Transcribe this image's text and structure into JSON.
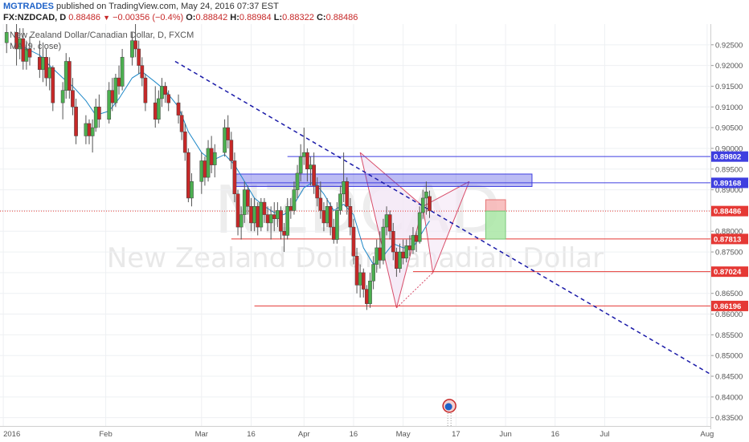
{
  "header": {
    "publisher": "MGTRADES",
    "published_text": "published on TradingView.com, May 24, 2016 07:37 EST",
    "symbol": "FX:NZDCAD, D",
    "last": "0.88486",
    "change": "−0.00356 (−0.4%)",
    "open_label": "O:",
    "open": "0.88842",
    "high_label": "H:",
    "high": "0.88984",
    "low_label": "L:",
    "low": "0.88322",
    "close_label": "C:",
    "close": "0.88486"
  },
  "overlay": {
    "title": "New Zealand Dollar/Canadian Dollar, D, FXCM",
    "ma_label": "MA (9, close)"
  },
  "watermark": {
    "symbol": "NZDCAD",
    "name": "New Zealand Dollar/Canadian Dollar"
  },
  "colors": {
    "up": "#4caf50",
    "down": "#c62828",
    "ma": "#1e88c8",
    "level_blue": "#3f3fe0",
    "level_red": "#e53935",
    "trend": "#1a1aa8"
  },
  "chart_data": {
    "type": "candlestick",
    "title": "New Zealand Dollar/Canadian Dollar, D, FXCM",
    "ylim": [
      0.833,
      0.93
    ],
    "y_ticks": [
      "0.92500",
      "0.92000",
      "0.91500",
      "0.91000",
      "0.90500",
      "0.90000",
      "0.89500",
      "0.89000",
      "0.88500",
      "0.88000",
      "0.87500",
      "0.87000",
      "0.86500",
      "0.86000",
      "0.85500",
      "0.85000",
      "0.84500",
      "0.84000",
      "0.83500"
    ],
    "x_ticks": [
      {
        "label": "2016",
        "day": 0
      },
      {
        "label": "Feb",
        "day": 31
      },
      {
        "label": "Mar",
        "day": 60
      },
      {
        "label": "16",
        "day": 75
      },
      {
        "label": "Apr",
        "day": 91
      },
      {
        "label": "16",
        "day": 106
      },
      {
        "label": "May",
        "day": 121
      },
      {
        "label": "17",
        "day": 137
      },
      {
        "label": "Jun",
        "day": 152
      },
      {
        "label": "16",
        "day": 167
      },
      {
        "label": "Jul",
        "day": 182
      },
      {
        "label": "Aug",
        "day": 213
      }
    ],
    "x_range_days": [
      -1,
      214
    ],
    "candles": [
      {
        "d": 1,
        "o": 0.9255,
        "h": 0.93,
        "l": 0.923,
        "c": 0.928
      },
      {
        "d": 4,
        "o": 0.928,
        "h": 0.93,
        "l": 0.92,
        "c": 0.924
      },
      {
        "d": 5,
        "o": 0.924,
        "h": 0.929,
        "l": 0.9215,
        "c": 0.9265
      },
      {
        "d": 6,
        "o": 0.9265,
        "h": 0.929,
        "l": 0.919,
        "c": 0.921
      },
      {
        "d": 7,
        "o": 0.921,
        "h": 0.926,
        "l": 0.919,
        "c": 0.924
      },
      {
        "d": 8,
        "o": 0.924,
        "h": 0.927,
        "l": 0.92,
        "c": 0.922
      },
      {
        "d": 11,
        "o": 0.922,
        "h": 0.926,
        "l": 0.917,
        "c": 0.919
      },
      {
        "d": 12,
        "o": 0.919,
        "h": 0.924,
        "l": 0.916,
        "c": 0.922
      },
      {
        "d": 13,
        "o": 0.922,
        "h": 0.924,
        "l": 0.915,
        "c": 0.917
      },
      {
        "d": 14,
        "o": 0.917,
        "h": 0.922,
        "l": 0.914,
        "c": 0.9195
      },
      {
        "d": 15,
        "o": 0.9195,
        "h": 0.92,
        "l": 0.909,
        "c": 0.911
      },
      {
        "d": 18,
        "o": 0.911,
        "h": 0.916,
        "l": 0.907,
        "c": 0.914
      },
      {
        "d": 19,
        "o": 0.914,
        "h": 0.923,
        "l": 0.912,
        "c": 0.921
      },
      {
        "d": 20,
        "o": 0.921,
        "h": 0.922,
        "l": 0.912,
        "c": 0.914
      },
      {
        "d": 21,
        "o": 0.914,
        "h": 0.917,
        "l": 0.908,
        "c": 0.91
      },
      {
        "d": 22,
        "o": 0.91,
        "h": 0.912,
        "l": 0.901,
        "c": 0.903
      },
      {
        "d": 25,
        "o": 0.903,
        "h": 0.908,
        "l": 0.901,
        "c": 0.906
      },
      {
        "d": 26,
        "o": 0.906,
        "h": 0.907,
        "l": 0.901,
        "c": 0.903
      },
      {
        "d": 27,
        "o": 0.903,
        "h": 0.907,
        "l": 0.899,
        "c": 0.905
      },
      {
        "d": 28,
        "o": 0.905,
        "h": 0.912,
        "l": 0.904,
        "c": 0.91
      },
      {
        "d": 29,
        "o": 0.91,
        "h": 0.913,
        "l": 0.905,
        "c": 0.907
      },
      {
        "d": 32,
        "o": 0.907,
        "h": 0.916,
        "l": 0.906,
        "c": 0.914
      },
      {
        "d": 33,
        "o": 0.914,
        "h": 0.917,
        "l": 0.909,
        "c": 0.911
      },
      {
        "d": 34,
        "o": 0.911,
        "h": 0.918,
        "l": 0.91,
        "c": 0.917
      },
      {
        "d": 35,
        "o": 0.917,
        "h": 0.92,
        "l": 0.913,
        "c": 0.915
      },
      {
        "d": 36,
        "o": 0.915,
        "h": 0.924,
        "l": 0.914,
        "c": 0.922
      },
      {
        "d": 39,
        "o": 0.922,
        "h": 0.928,
        "l": 0.92,
        "c": 0.926
      },
      {
        "d": 40,
        "o": 0.926,
        "h": 0.93,
        "l": 0.922,
        "c": 0.924
      },
      {
        "d": 41,
        "o": 0.924,
        "h": 0.926,
        "l": 0.918,
        "c": 0.92
      },
      {
        "d": 42,
        "o": 0.92,
        "h": 0.922,
        "l": 0.915,
        "c": 0.917
      },
      {
        "d": 43,
        "o": 0.917,
        "h": 0.918,
        "l": 0.909,
        "c": 0.911
      },
      {
        "d": 46,
        "o": 0.911,
        "h": 0.915,
        "l": 0.905,
        "c": 0.907
      },
      {
        "d": 47,
        "o": 0.907,
        "h": 0.914,
        "l": 0.906,
        "c": 0.912
      },
      {
        "d": 48,
        "o": 0.912,
        "h": 0.917,
        "l": 0.91,
        "c": 0.915
      },
      {
        "d": 49,
        "o": 0.915,
        "h": 0.916,
        "l": 0.911,
        "c": 0.913
      },
      {
        "d": 50,
        "o": 0.913,
        "h": 0.914,
        "l": 0.909,
        "c": 0.911
      },
      {
        "d": 53,
        "o": 0.911,
        "h": 0.913,
        "l": 0.906,
        "c": 0.908
      },
      {
        "d": 54,
        "o": 0.908,
        "h": 0.909,
        "l": 0.902,
        "c": 0.904
      },
      {
        "d": 55,
        "o": 0.904,
        "h": 0.906,
        "l": 0.897,
        "c": 0.899
      },
      {
        "d": 56,
        "o": 0.899,
        "h": 0.9,
        "l": 0.887,
        "c": 0.888
      },
      {
        "d": 57,
        "o": 0.888,
        "h": 0.894,
        "l": 0.886,
        "c": 0.892
      },
      {
        "d": 60,
        "o": 0.892,
        "h": 0.899,
        "l": 0.889,
        "c": 0.897
      },
      {
        "d": 61,
        "o": 0.897,
        "h": 0.898,
        "l": 0.891,
        "c": 0.893
      },
      {
        "d": 62,
        "o": 0.893,
        "h": 0.902,
        "l": 0.892,
        "c": 0.9
      },
      {
        "d": 63,
        "o": 0.9,
        "h": 0.903,
        "l": 0.894,
        "c": 0.896
      },
      {
        "d": 64,
        "o": 0.896,
        "h": 0.901,
        "l": 0.893,
        "c": 0.899
      },
      {
        "d": 67,
        "o": 0.899,
        "h": 0.907,
        "l": 0.898,
        "c": 0.905
      },
      {
        "d": 68,
        "o": 0.905,
        "h": 0.908,
        "l": 0.9,
        "c": 0.902
      },
      {
        "d": 69,
        "o": 0.902,
        "h": 0.904,
        "l": 0.895,
        "c": 0.897
      },
      {
        "d": 70,
        "o": 0.897,
        "h": 0.899,
        "l": 0.887,
        "c": 0.889
      },
      {
        "d": 71,
        "o": 0.889,
        "h": 0.89,
        "l": 0.879,
        "c": 0.881
      },
      {
        "d": 72,
        "o": 0.881,
        "h": 0.886,
        "l": 0.878,
        "c": 0.884
      },
      {
        "d": 73,
        "o": 0.884,
        "h": 0.892,
        "l": 0.882,
        "c": 0.89
      },
      {
        "d": 74,
        "o": 0.89,
        "h": 0.891,
        "l": 0.884,
        "c": 0.886
      },
      {
        "d": 75,
        "o": 0.886,
        "h": 0.888,
        "l": 0.88,
        "c": 0.882
      },
      {
        "d": 76,
        "o": 0.882,
        "h": 0.888,
        "l": 0.88,
        "c": 0.886
      },
      {
        "d": 77,
        "o": 0.886,
        "h": 0.887,
        "l": 0.879,
        "c": 0.881
      },
      {
        "d": 78,
        "o": 0.881,
        "h": 0.888,
        "l": 0.88,
        "c": 0.887
      },
      {
        "d": 79,
        "o": 0.887,
        "h": 0.888,
        "l": 0.882,
        "c": 0.884
      },
      {
        "d": 80,
        "o": 0.884,
        "h": 0.886,
        "l": 0.88,
        "c": 0.882
      },
      {
        "d": 81,
        "o": 0.882,
        "h": 0.886,
        "l": 0.878,
        "c": 0.884
      },
      {
        "d": 82,
        "o": 0.884,
        "h": 0.887,
        "l": 0.88,
        "c": 0.883
      },
      {
        "d": 83,
        "o": 0.883,
        "h": 0.887,
        "l": 0.881,
        "c": 0.885
      },
      {
        "d": 84,
        "o": 0.885,
        "h": 0.886,
        "l": 0.878,
        "c": 0.88
      },
      {
        "d": 85,
        "o": 0.88,
        "h": 0.882,
        "l": 0.875,
        "c": 0.879
      },
      {
        "d": 86,
        "o": 0.879,
        "h": 0.888,
        "l": 0.878,
        "c": 0.886
      },
      {
        "d": 87,
        "o": 0.886,
        "h": 0.888,
        "l": 0.883,
        "c": 0.885
      },
      {
        "d": 88,
        "o": 0.885,
        "h": 0.892,
        "l": 0.884,
        "c": 0.89
      },
      {
        "d": 89,
        "o": 0.89,
        "h": 0.896,
        "l": 0.888,
        "c": 0.894
      },
      {
        "d": 90,
        "o": 0.894,
        "h": 0.901,
        "l": 0.892,
        "c": 0.898
      },
      {
        "d": 91,
        "o": 0.898,
        "h": 0.905,
        "l": 0.896,
        "c": 0.899
      },
      {
        "d": 92,
        "o": 0.899,
        "h": 0.9,
        "l": 0.892,
        "c": 0.895
      },
      {
        "d": 93,
        "o": 0.895,
        "h": 0.898,
        "l": 0.891,
        "c": 0.896
      },
      {
        "d": 94,
        "o": 0.896,
        "h": 0.899,
        "l": 0.889,
        "c": 0.891
      },
      {
        "d": 95,
        "o": 0.891,
        "h": 0.893,
        "l": 0.886,
        "c": 0.888
      },
      {
        "d": 96,
        "o": 0.888,
        "h": 0.892,
        "l": 0.883,
        "c": 0.885
      },
      {
        "d": 97,
        "o": 0.885,
        "h": 0.887,
        "l": 0.88,
        "c": 0.882
      },
      {
        "d": 98,
        "o": 0.882,
        "h": 0.888,
        "l": 0.881,
        "c": 0.886
      },
      {
        "d": 99,
        "o": 0.886,
        "h": 0.887,
        "l": 0.879,
        "c": 0.881
      },
      {
        "d": 100,
        "o": 0.881,
        "h": 0.883,
        "l": 0.877,
        "c": 0.878
      },
      {
        "d": 101,
        "o": 0.878,
        "h": 0.887,
        "l": 0.877,
        "c": 0.885
      },
      {
        "d": 102,
        "o": 0.885,
        "h": 0.891,
        "l": 0.884,
        "c": 0.889
      },
      {
        "d": 103,
        "o": 0.889,
        "h": 0.899,
        "l": 0.887,
        "c": 0.892
      },
      {
        "d": 104,
        "o": 0.892,
        "h": 0.893,
        "l": 0.884,
        "c": 0.886
      },
      {
        "d": 105,
        "o": 0.886,
        "h": 0.888,
        "l": 0.879,
        "c": 0.881
      },
      {
        "d": 106,
        "o": 0.881,
        "h": 0.883,
        "l": 0.872,
        "c": 0.874
      },
      {
        "d": 107,
        "o": 0.874,
        "h": 0.876,
        "l": 0.865,
        "c": 0.867
      },
      {
        "d": 108,
        "o": 0.867,
        "h": 0.872,
        "l": 0.864,
        "c": 0.87
      },
      {
        "d": 109,
        "o": 0.87,
        "h": 0.871,
        "l": 0.864,
        "c": 0.866
      },
      {
        "d": 110,
        "o": 0.866,
        "h": 0.867,
        "l": 0.861,
        "c": 0.8625
      },
      {
        "d": 111,
        "o": 0.8625,
        "h": 0.87,
        "l": 0.8615,
        "c": 0.868
      },
      {
        "d": 112,
        "o": 0.868,
        "h": 0.874,
        "l": 0.866,
        "c": 0.872
      },
      {
        "d": 113,
        "o": 0.872,
        "h": 0.878,
        "l": 0.87,
        "c": 0.876
      },
      {
        "d": 114,
        "o": 0.876,
        "h": 0.88,
        "l": 0.871,
        "c": 0.873
      },
      {
        "d": 115,
        "o": 0.873,
        "h": 0.883,
        "l": 0.872,
        "c": 0.881
      },
      {
        "d": 116,
        "o": 0.881,
        "h": 0.886,
        "l": 0.879,
        "c": 0.884
      },
      {
        "d": 117,
        "o": 0.884,
        "h": 0.885,
        "l": 0.878,
        "c": 0.88
      },
      {
        "d": 118,
        "o": 0.88,
        "h": 0.882,
        "l": 0.873,
        "c": 0.875
      },
      {
        "d": 119,
        "o": 0.875,
        "h": 0.876,
        "l": 0.869,
        "c": 0.871
      },
      {
        "d": 120,
        "o": 0.871,
        "h": 0.877,
        "l": 0.87,
        "c": 0.875
      },
      {
        "d": 121,
        "o": 0.875,
        "h": 0.878,
        "l": 0.872,
        "c": 0.8735
      },
      {
        "d": 122,
        "o": 0.8735,
        "h": 0.878,
        "l": 0.8725,
        "c": 0.8765
      },
      {
        "d": 123,
        "o": 0.8765,
        "h": 0.879,
        "l": 0.874,
        "c": 0.8755
      },
      {
        "d": 124,
        "o": 0.8755,
        "h": 0.881,
        "l": 0.8745,
        "c": 0.879
      },
      {
        "d": 125,
        "o": 0.879,
        "h": 0.88,
        "l": 0.875,
        "c": 0.8775
      },
      {
        "d": 126,
        "o": 0.8775,
        "h": 0.886,
        "l": 0.877,
        "c": 0.8845
      },
      {
        "d": 127,
        "o": 0.8845,
        "h": 0.89,
        "l": 0.883,
        "c": 0.888
      },
      {
        "d": 128,
        "o": 0.888,
        "h": 0.892,
        "l": 0.884,
        "c": 0.8895
      },
      {
        "d": 129,
        "o": 0.8884,
        "h": 0.8898,
        "l": 0.8832,
        "c": 0.8849
      }
    ],
    "ma_label": "MA (9, close)",
    "ma": [
      {
        "d": 6,
        "v": 0.9245
      },
      {
        "d": 11,
        "v": 0.9225
      },
      {
        "d": 14,
        "v": 0.92
      },
      {
        "d": 18,
        "v": 0.917
      },
      {
        "d": 21,
        "v": 0.915
      },
      {
        "d": 25,
        "v": 0.9115
      },
      {
        "d": 28,
        "v": 0.908
      },
      {
        "d": 32,
        "v": 0.909
      },
      {
        "d": 35,
        "v": 0.912
      },
      {
        "d": 39,
        "v": 0.917
      },
      {
        "d": 42,
        "v": 0.9185
      },
      {
        "d": 46,
        "v": 0.916
      },
      {
        "d": 49,
        "v": 0.914
      },
      {
        "d": 53,
        "v": 0.91
      },
      {
        "d": 56,
        "v": 0.904
      },
      {
        "d": 60,
        "v": 0.899
      },
      {
        "d": 63,
        "v": 0.897
      },
      {
        "d": 67,
        "v": 0.8985
      },
      {
        "d": 70,
        "v": 0.896
      },
      {
        "d": 73,
        "v": 0.892
      },
      {
        "d": 76,
        "v": 0.888
      },
      {
        "d": 79,
        "v": 0.886
      },
      {
        "d": 82,
        "v": 0.8845
      },
      {
        "d": 85,
        "v": 0.884
      },
      {
        "d": 88,
        "v": 0.8865
      },
      {
        "d": 91,
        "v": 0.8905
      },
      {
        "d": 94,
        "v": 0.892
      },
      {
        "d": 97,
        "v": 0.889
      },
      {
        "d": 100,
        "v": 0.885
      },
      {
        "d": 103,
        "v": 0.8865
      },
      {
        "d": 106,
        "v": 0.884
      },
      {
        "d": 109,
        "v": 0.876
      },
      {
        "d": 112,
        "v": 0.872
      },
      {
        "d": 115,
        "v": 0.874
      },
      {
        "d": 118,
        "v": 0.877
      },
      {
        "d": 121,
        "v": 0.876
      },
      {
        "d": 124,
        "v": 0.876
      },
      {
        "d": 127,
        "v": 0.88
      },
      {
        "d": 129,
        "v": 0.8825
      }
    ],
    "price_labels": [
      {
        "value": 0.89802,
        "text": "0.89802",
        "color": "#3f3fe0"
      },
      {
        "value": 0.89168,
        "text": "0.89168",
        "color": "#3f3fe0"
      },
      {
        "value": 0.88486,
        "text": "0.88486",
        "color": "#e53935"
      },
      {
        "value": 0.87813,
        "text": "0.87813",
        "color": "#e53935"
      },
      {
        "value": 0.87024,
        "text": "0.87024",
        "color": "#e53935"
      },
      {
        "value": 0.86196,
        "text": "0.86196",
        "color": "#e53935"
      }
    ],
    "levels": [
      {
        "value": 0.89802,
        "d0": 86,
        "d1": 214,
        "color": "#3f3fe0"
      },
      {
        "value": 0.89168,
        "d0": 70,
        "d1": 214,
        "color": "#3f3fe0"
      },
      {
        "value": 0.87813,
        "d0": 69,
        "d1": 214,
        "color": "#e53935"
      },
      {
        "value": 0.87024,
        "d0": 124,
        "d1": 214,
        "color": "#e53935"
      },
      {
        "value": 0.86196,
        "d0": 76,
        "d1": 214,
        "color": "#e53935"
      }
    ],
    "current_price": 0.88486,
    "zone": {
      "d0": 70,
      "d1": 160,
      "y0": 0.8908,
      "y1": 0.8938
    },
    "trendline": {
      "d0": 52,
      "y0": 0.921,
      "d1": 214,
      "y1": 0.8455
    },
    "pattern": {
      "points": [
        {
          "d": 108,
          "v": 0.899
        },
        {
          "d": 119,
          "v": 0.8615
        },
        {
          "d": 127,
          "v": 0.886
        },
        {
          "d": 130,
          "v": 0.87
        },
        {
          "d": 141,
          "v": 0.892
        }
      ],
      "xa_fill": "#f3e6f5",
      "stroke": "#d84d6a"
    },
    "position": {
      "d0": 146,
      "d1": 152,
      "entry": 0.88486,
      "stop": 0.8876,
      "target": 0.8781
    }
  }
}
